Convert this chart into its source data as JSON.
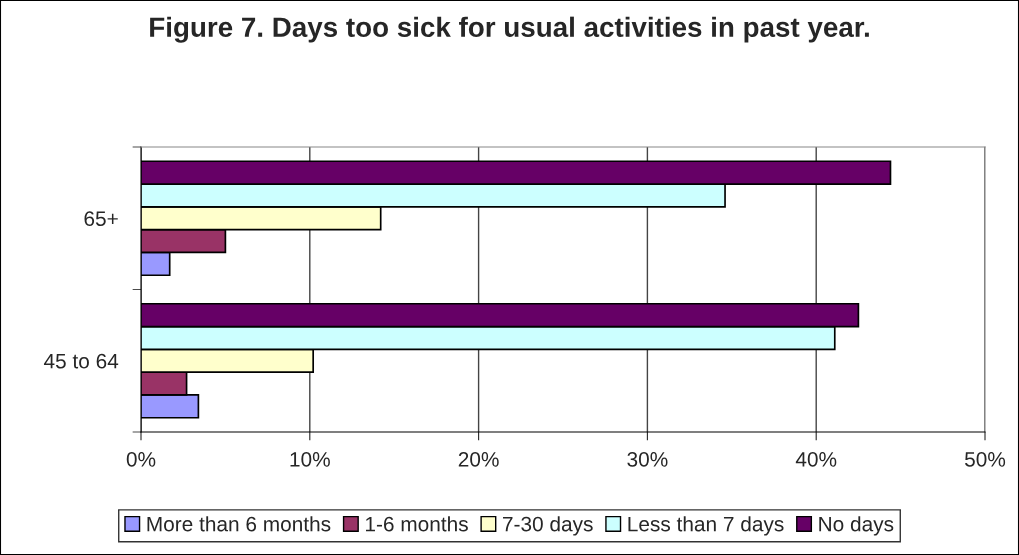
{
  "chart_data": {
    "type": "bar",
    "orientation": "horizontal",
    "title": "Figure 7. Days too sick for usual activities in past year.",
    "categories": [
      "65+",
      "45 to 64"
    ],
    "series": [
      {
        "name": "More than 6 months",
        "color": "#9999ff",
        "values": [
          1.7,
          3.4
        ]
      },
      {
        "name": "1-6 months",
        "color": "#993366",
        "values": [
          5.0,
          2.7
        ]
      },
      {
        "name": "7-30 days",
        "color": "#ffffcc",
        "values": [
          14.2,
          10.2
        ]
      },
      {
        "name": "Less than 7 days",
        "color": "#ccffff",
        "values": [
          34.6,
          41.1
        ]
      },
      {
        "name": "No days",
        "color": "#660066",
        "values": [
          44.4,
          42.5
        ]
      }
    ],
    "xlim": [
      0,
      50
    ],
    "xticks": [
      {
        "value": 0,
        "label": "0%"
      },
      {
        "value": 10,
        "label": "10%"
      },
      {
        "value": 20,
        "label": "20%"
      },
      {
        "value": 30,
        "label": "30%"
      },
      {
        "value": 40,
        "label": "40%"
      },
      {
        "value": 50,
        "label": "50%"
      }
    ],
    "grid": "x",
    "legend": "bottom"
  }
}
